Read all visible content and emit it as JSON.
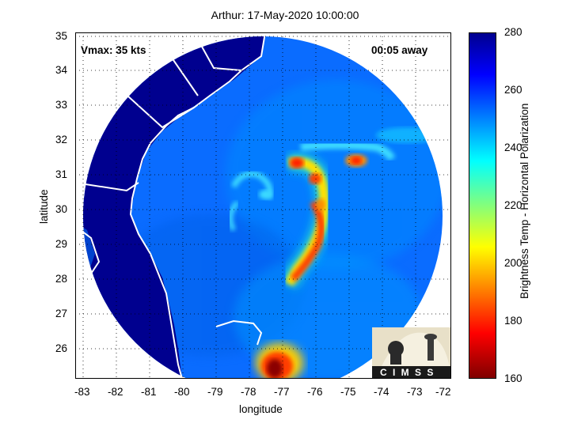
{
  "header": {
    "title": "Arthur: 17-May-2020 10:00:00"
  },
  "overlay": {
    "vmax": "Vmax: 35 kts",
    "away": "00:05 away"
  },
  "axes": {
    "xlabel": "longitude",
    "ylabel": "latitude",
    "xticks": [
      "-83",
      "-82",
      "-81",
      "-80",
      "-79",
      "-78",
      "-77",
      "-76",
      "-75",
      "-74",
      "-73",
      "-72"
    ],
    "yticks": [
      "35",
      "34",
      "33",
      "32",
      "31",
      "30",
      "29",
      "28",
      "27",
      "26"
    ]
  },
  "colorbar": {
    "label": "Brightness Temp - Horizontal Polarization",
    "ticks": [
      "280",
      "260",
      "240",
      "220",
      "200",
      "180",
      "160"
    ]
  },
  "logo": {
    "text": "C I M S S"
  },
  "colors": {
    "land": "#00008f",
    "ocean_cool": "#0a6cff",
    "ocean_warm": "#0092ff",
    "convection": "#ff3c00"
  }
}
